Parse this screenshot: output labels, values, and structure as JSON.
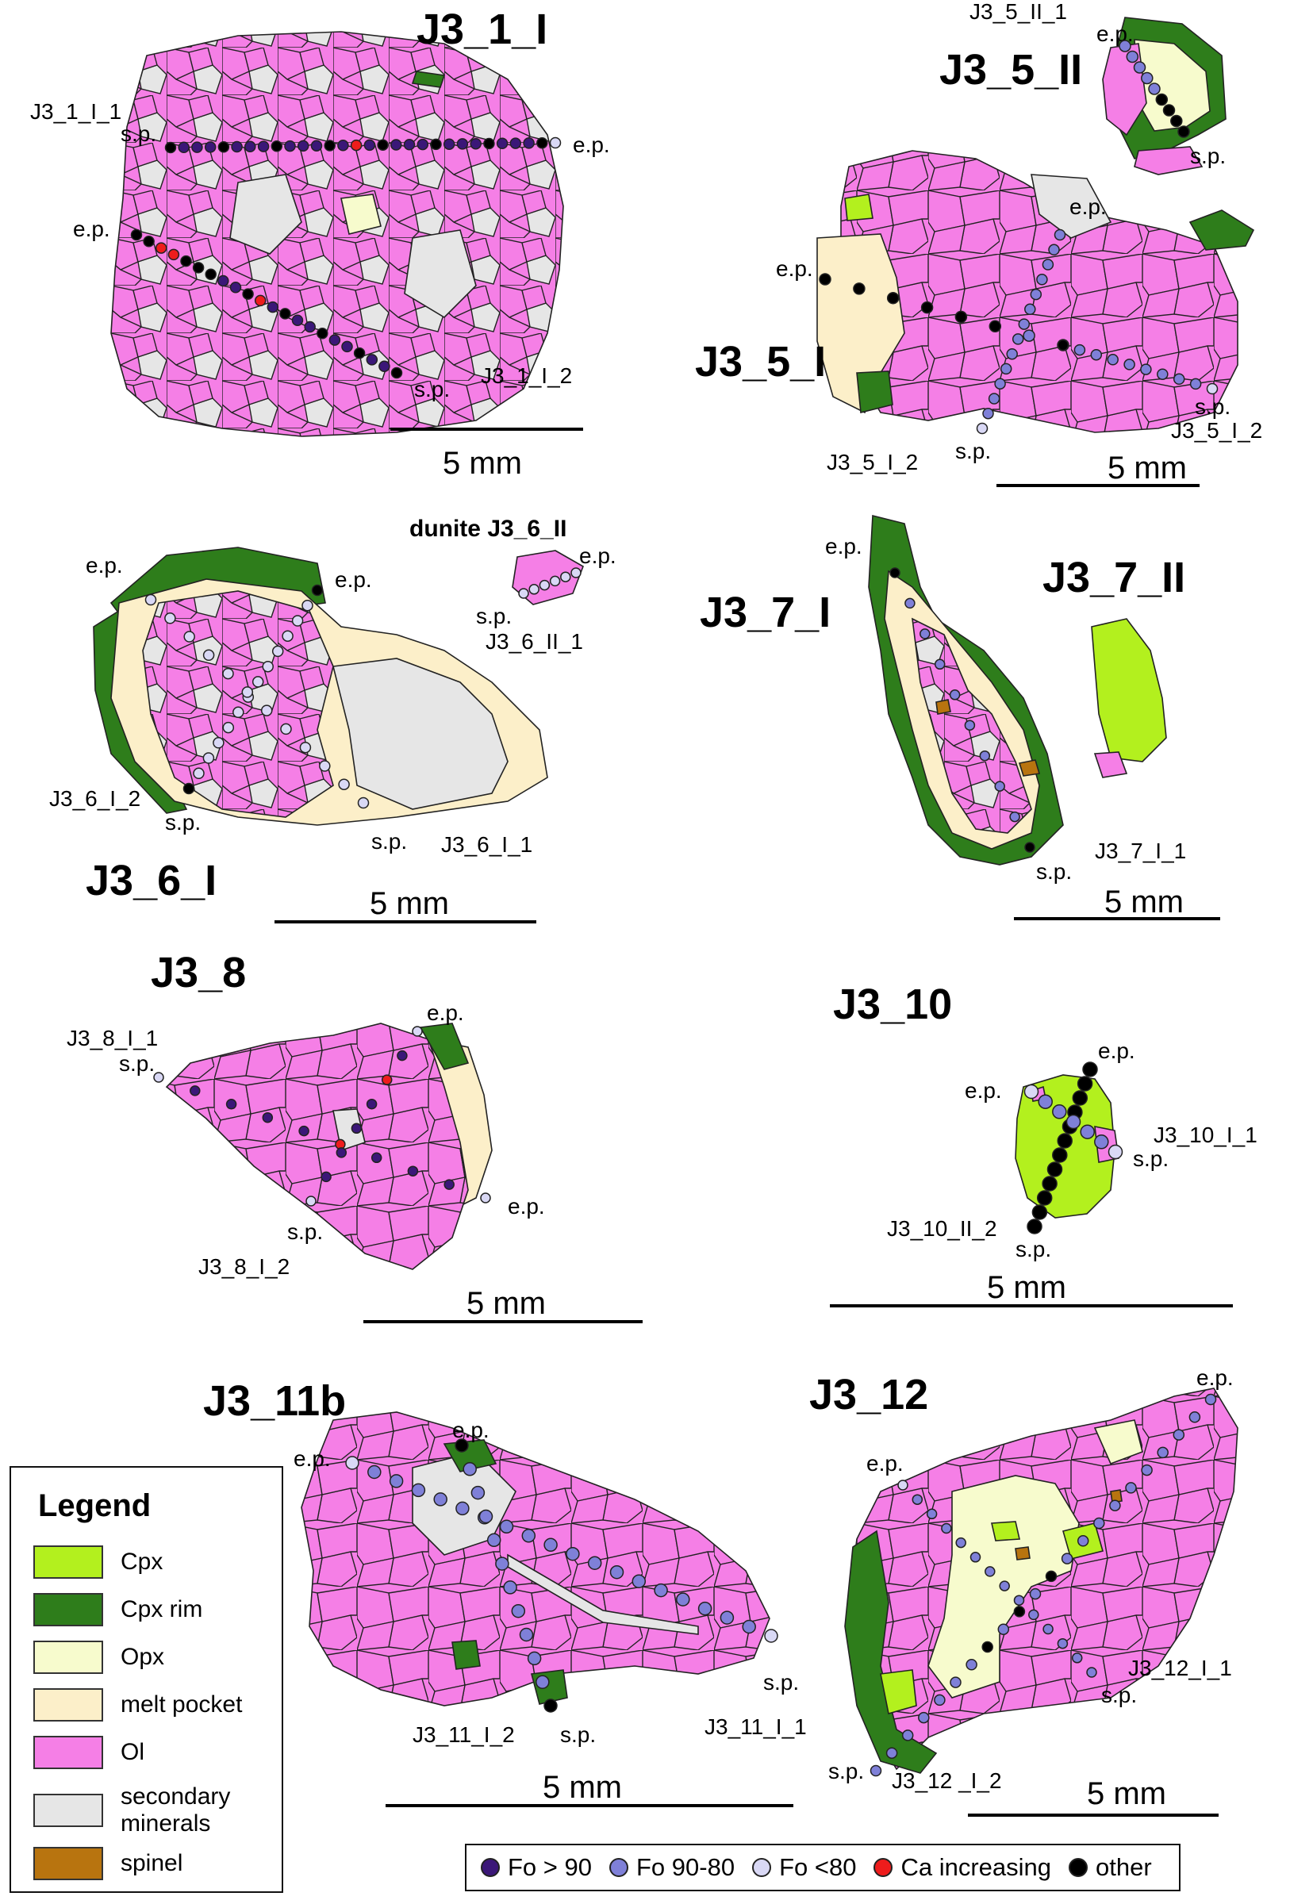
{
  "colors": {
    "cpx": "#b3f01e",
    "cpx_rim": "#2e7d1b",
    "opx": "#f7fbcd",
    "melt_pocket": "#fcefc9",
    "ol": "#f57fe6",
    "secondary": "#e6e6e6",
    "spinel": "#b8740f",
    "fo_gt90": "#3b1778",
    "fo_90_80": "#7f80d8",
    "fo_lt80": "#d9d8f5",
    "ca_increasing": "#ee1c1c",
    "other": "#000000"
  },
  "samples": [
    {
      "title": "J3_1_I",
      "profiles": [
        "J3_1_I_1",
        "J3_1_I_2"
      ],
      "scale": "5 mm"
    },
    {
      "title": "J3_5_II",
      "profiles": [
        "J3_5_II_1"
      ]
    },
    {
      "title": "J3_5_I",
      "profiles": [
        "J3_5_I_2",
        "J3_5_I_2"
      ],
      "scale": "5 mm"
    },
    {
      "title": "J3_6_I",
      "profiles": [
        "J3_6_I_2",
        "J3_6_I_1"
      ],
      "scale": "5 mm"
    },
    {
      "title": "dunite J3_6_II",
      "profiles": [
        "J3_6_II_1"
      ]
    },
    {
      "title": "J3_7_I",
      "profiles": [
        "J3_7_I_1"
      ],
      "scale": "5 mm"
    },
    {
      "title": "J3_7_II"
    },
    {
      "title": "J3_8",
      "profiles": [
        "J3_8_I_1",
        "J3_8_I_2"
      ],
      "scale": "5 mm"
    },
    {
      "title": "J3_10",
      "profiles": [
        "J3_10_I_1",
        "J3_10_II_2"
      ],
      "scale": "5 mm"
    },
    {
      "title": "J3_11b",
      "profiles": [
        "J3_11_I_2",
        "J3_11_I_1"
      ],
      "scale": "5 mm"
    },
    {
      "title": "J3_12",
      "profiles": [
        "J3_12_I_1",
        "J3_12 _I_2"
      ],
      "scale": "5 mm"
    }
  ],
  "point_labels": {
    "start": "s.p.",
    "end": "e.p."
  },
  "legend": {
    "title": "Legend",
    "items": [
      {
        "label": "Cpx",
        "color_key": "cpx"
      },
      {
        "label": "Cpx rim",
        "color_key": "cpx_rim"
      },
      {
        "label": "Opx",
        "color_key": "opx"
      },
      {
        "label": "melt pocket",
        "color_key": "melt_pocket"
      },
      {
        "label": "Ol",
        "color_key": "ol"
      },
      {
        "label": "secondary minerals",
        "color_key": "secondary"
      },
      {
        "label": "spinel",
        "color_key": "spinel"
      }
    ]
  },
  "dot_legend": [
    {
      "label": "Fo > 90",
      "color_key": "fo_gt90"
    },
    {
      "label": "Fo 90-80",
      "color_key": "fo_90_80"
    },
    {
      "label": "Fo <80",
      "color_key": "fo_lt80"
    },
    {
      "label": "Ca increasing",
      "color_key": "ca_increasing"
    },
    {
      "label": "other",
      "color_key": "other"
    }
  ]
}
